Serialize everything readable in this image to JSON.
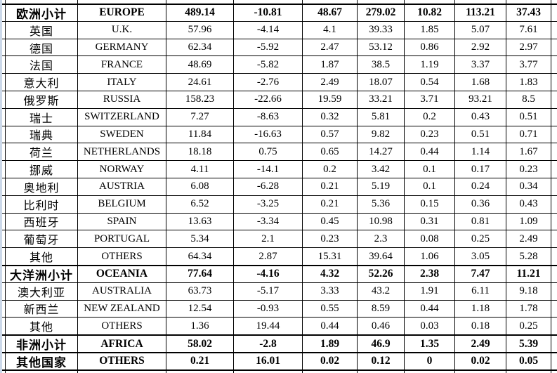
{
  "colors": {
    "left_strip": "#ccd9ea",
    "grid_border": "#000000",
    "cell_background": "#ffffff",
    "text": "#000000"
  },
  "table": {
    "rows": [
      {
        "name_cn": "欧洲小计",
        "name_en": "EUROPE",
        "subtotal": true,
        "values": [
          "489.14",
          "-10.81",
          "48.67",
          "279.02",
          "10.82",
          "113.21",
          "37.43"
        ]
      },
      {
        "name_cn": "英国",
        "name_en": "U.K.",
        "subtotal": false,
        "values": [
          "57.96",
          "-4.14",
          "4.1",
          "39.33",
          "1.85",
          "5.07",
          "7.61"
        ]
      },
      {
        "name_cn": "德国",
        "name_en": "GERMANY",
        "subtotal": false,
        "values": [
          "62.34",
          "-5.92",
          "2.47",
          "53.12",
          "0.86",
          "2.92",
          "2.97"
        ]
      },
      {
        "name_cn": "法国",
        "name_en": "FRANCE",
        "subtotal": false,
        "values": [
          "48.69",
          "-5.82",
          "1.87",
          "38.5",
          "1.19",
          "3.37",
          "3.77"
        ]
      },
      {
        "name_cn": "意大利",
        "name_en": "ITALY",
        "subtotal": false,
        "values": [
          "24.61",
          "-2.76",
          "2.49",
          "18.07",
          "0.54",
          "1.68",
          "1.83"
        ]
      },
      {
        "name_cn": "俄罗斯",
        "name_en": "RUSSIA",
        "subtotal": false,
        "values": [
          "158.23",
          "-22.66",
          "19.59",
          "33.21",
          "3.71",
          "93.21",
          "8.5"
        ]
      },
      {
        "name_cn": "瑞士",
        "name_en": "SWITZERLAND",
        "subtotal": false,
        "values": [
          "7.27",
          "-8.63",
          "0.32",
          "5.81",
          "0.2",
          "0.43",
          "0.51"
        ]
      },
      {
        "name_cn": "瑞典",
        "name_en": "SWEDEN",
        "subtotal": false,
        "values": [
          "11.84",
          "-16.63",
          "0.57",
          "9.82",
          "0.23",
          "0.51",
          "0.71"
        ]
      },
      {
        "name_cn": "荷兰",
        "name_en": "NETHERLANDS",
        "subtotal": false,
        "values": [
          "18.18",
          "0.75",
          "0.65",
          "14.27",
          "0.44",
          "1.14",
          "1.67"
        ]
      },
      {
        "name_cn": "挪威",
        "name_en": "NORWAY",
        "subtotal": false,
        "values": [
          "4.11",
          "-14.1",
          "0.2",
          "3.42",
          "0.1",
          "0.17",
          "0.23"
        ]
      },
      {
        "name_cn": "奥地利",
        "name_en": "AUSTRIA",
        "subtotal": false,
        "values": [
          "6.08",
          "-6.28",
          "0.21",
          "5.19",
          "0.1",
          "0.24",
          "0.34"
        ]
      },
      {
        "name_cn": "比利时",
        "name_en": "BELGIUM",
        "subtotal": false,
        "values": [
          "6.52",
          "-3.25",
          "0.21",
          "5.36",
          "0.15",
          "0.36",
          "0.43"
        ]
      },
      {
        "name_cn": "西班牙",
        "name_en": "SPAIN",
        "subtotal": false,
        "values": [
          "13.63",
          "-3.34",
          "0.45",
          "10.98",
          "0.31",
          "0.81",
          "1.09"
        ]
      },
      {
        "name_cn": "葡萄牙",
        "name_en": "PORTUGAL",
        "subtotal": false,
        "values": [
          "5.34",
          "2.1",
          "0.23",
          "2.3",
          "0.08",
          "0.25",
          "2.49"
        ]
      },
      {
        "name_cn": "其他",
        "name_en": "OTHERS",
        "subtotal": false,
        "values": [
          "64.34",
          "2.87",
          "15.31",
          "39.64",
          "1.06",
          "3.05",
          "5.28"
        ]
      },
      {
        "name_cn": "大洋洲小计",
        "name_en": "OCEANIA",
        "subtotal": true,
        "values": [
          "77.64",
          "-4.16",
          "4.32",
          "52.26",
          "2.38",
          "7.47",
          "11.21"
        ]
      },
      {
        "name_cn": "澳大利亚",
        "name_en": "AUSTRALIA",
        "subtotal": false,
        "values": [
          "63.73",
          "-5.17",
          "3.33",
          "43.2",
          "1.91",
          "6.11",
          "9.18"
        ]
      },
      {
        "name_cn": "新西兰",
        "name_en": "NEW ZEALAND",
        "subtotal": false,
        "values": [
          "12.54",
          "-0.93",
          "0.55",
          "8.59",
          "0.44",
          "1.18",
          "1.78"
        ]
      },
      {
        "name_cn": "其他",
        "name_en": "OTHERS",
        "subtotal": false,
        "values": [
          "1.36",
          "19.44",
          "0.44",
          "0.46",
          "0.03",
          "0.18",
          "0.25"
        ]
      },
      {
        "name_cn": "非洲小计",
        "name_en": "AFRICA",
        "subtotal": true,
        "values": [
          "58.02",
          "-2.8",
          "1.89",
          "46.9",
          "1.35",
          "2.49",
          "5.39"
        ]
      },
      {
        "name_cn": "其他国家",
        "name_en": "OTHERS",
        "subtotal": true,
        "values": [
          "0.21",
          "16.01",
          "0.02",
          "0.12",
          "0",
          "0.02",
          "0.05"
        ]
      }
    ]
  }
}
